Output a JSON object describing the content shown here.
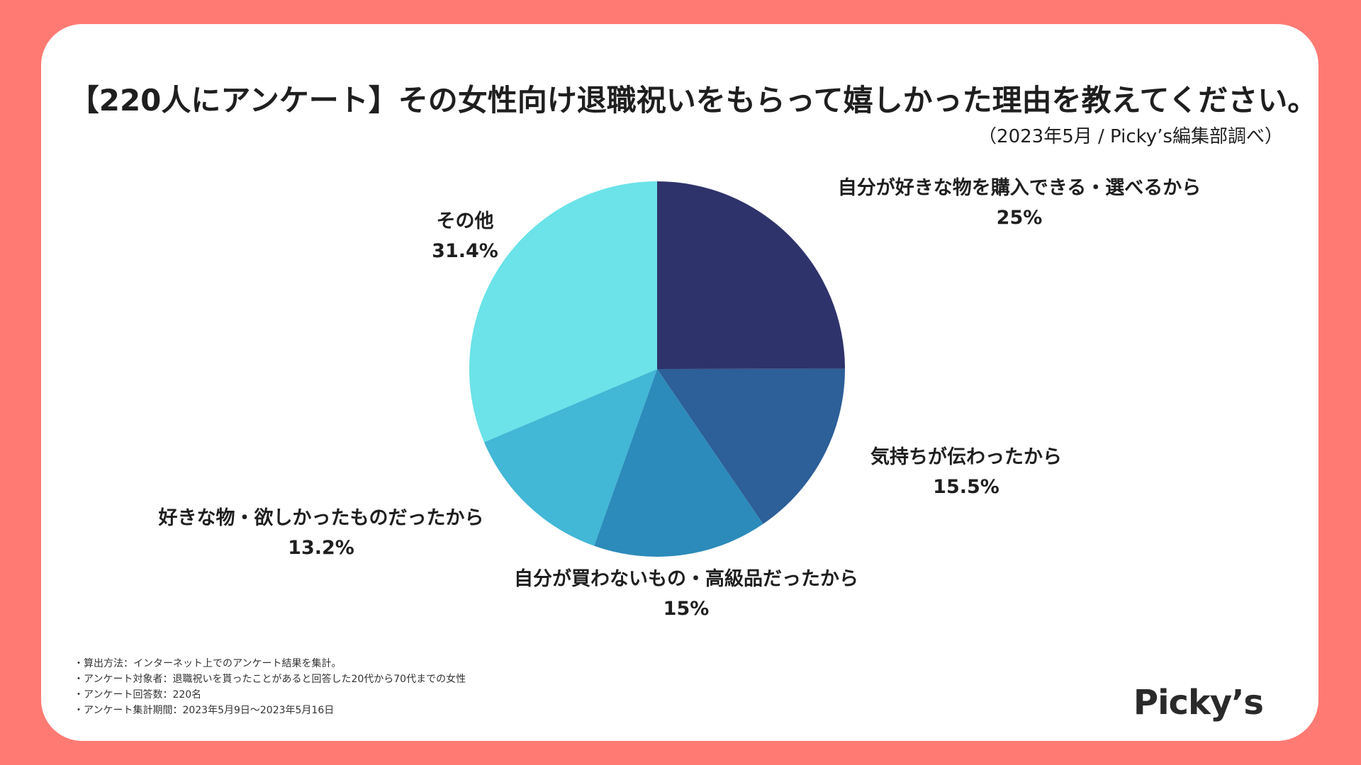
{
  "title": "【220人にアンケート】その女性向け退職祝いをもらって嬉しかった理由を教えてください。",
  "subtitle": "（2023年5月 / Picky’s編集部調べ）",
  "notes": [
    "・算出方法：インターネット上でのアンケート結果を集計。",
    "・アンケート対象者：退職祝いを貰ったことがあると回答した20代から70代までの女性",
    "・アンケート回答数：220名",
    "・アンケート集計期間：2023年5月9日〜2023年5月16日"
  ],
  "logo": "Picky’s",
  "chart_data": {
    "type": "pie",
    "start": "12 o'clock, clockwise",
    "categories": [
      "自分が好きな物を購入できる・選べるから",
      "気持ちが伝わったから",
      "自分が買わないもの・高級品だったから",
      "好きな物・欲しかったものだったから",
      "その他"
    ],
    "values": [
      25,
      15.5,
      15,
      13.2,
      31.4
    ],
    "value_labels": [
      "25%",
      "15.5%",
      "15%",
      "13.2%",
      "31.4%"
    ],
    "colors": [
      "#2F336B",
      "#2D5F98",
      "#2C8BBA",
      "#42B7D6",
      "#6BE3E8"
    ]
  }
}
